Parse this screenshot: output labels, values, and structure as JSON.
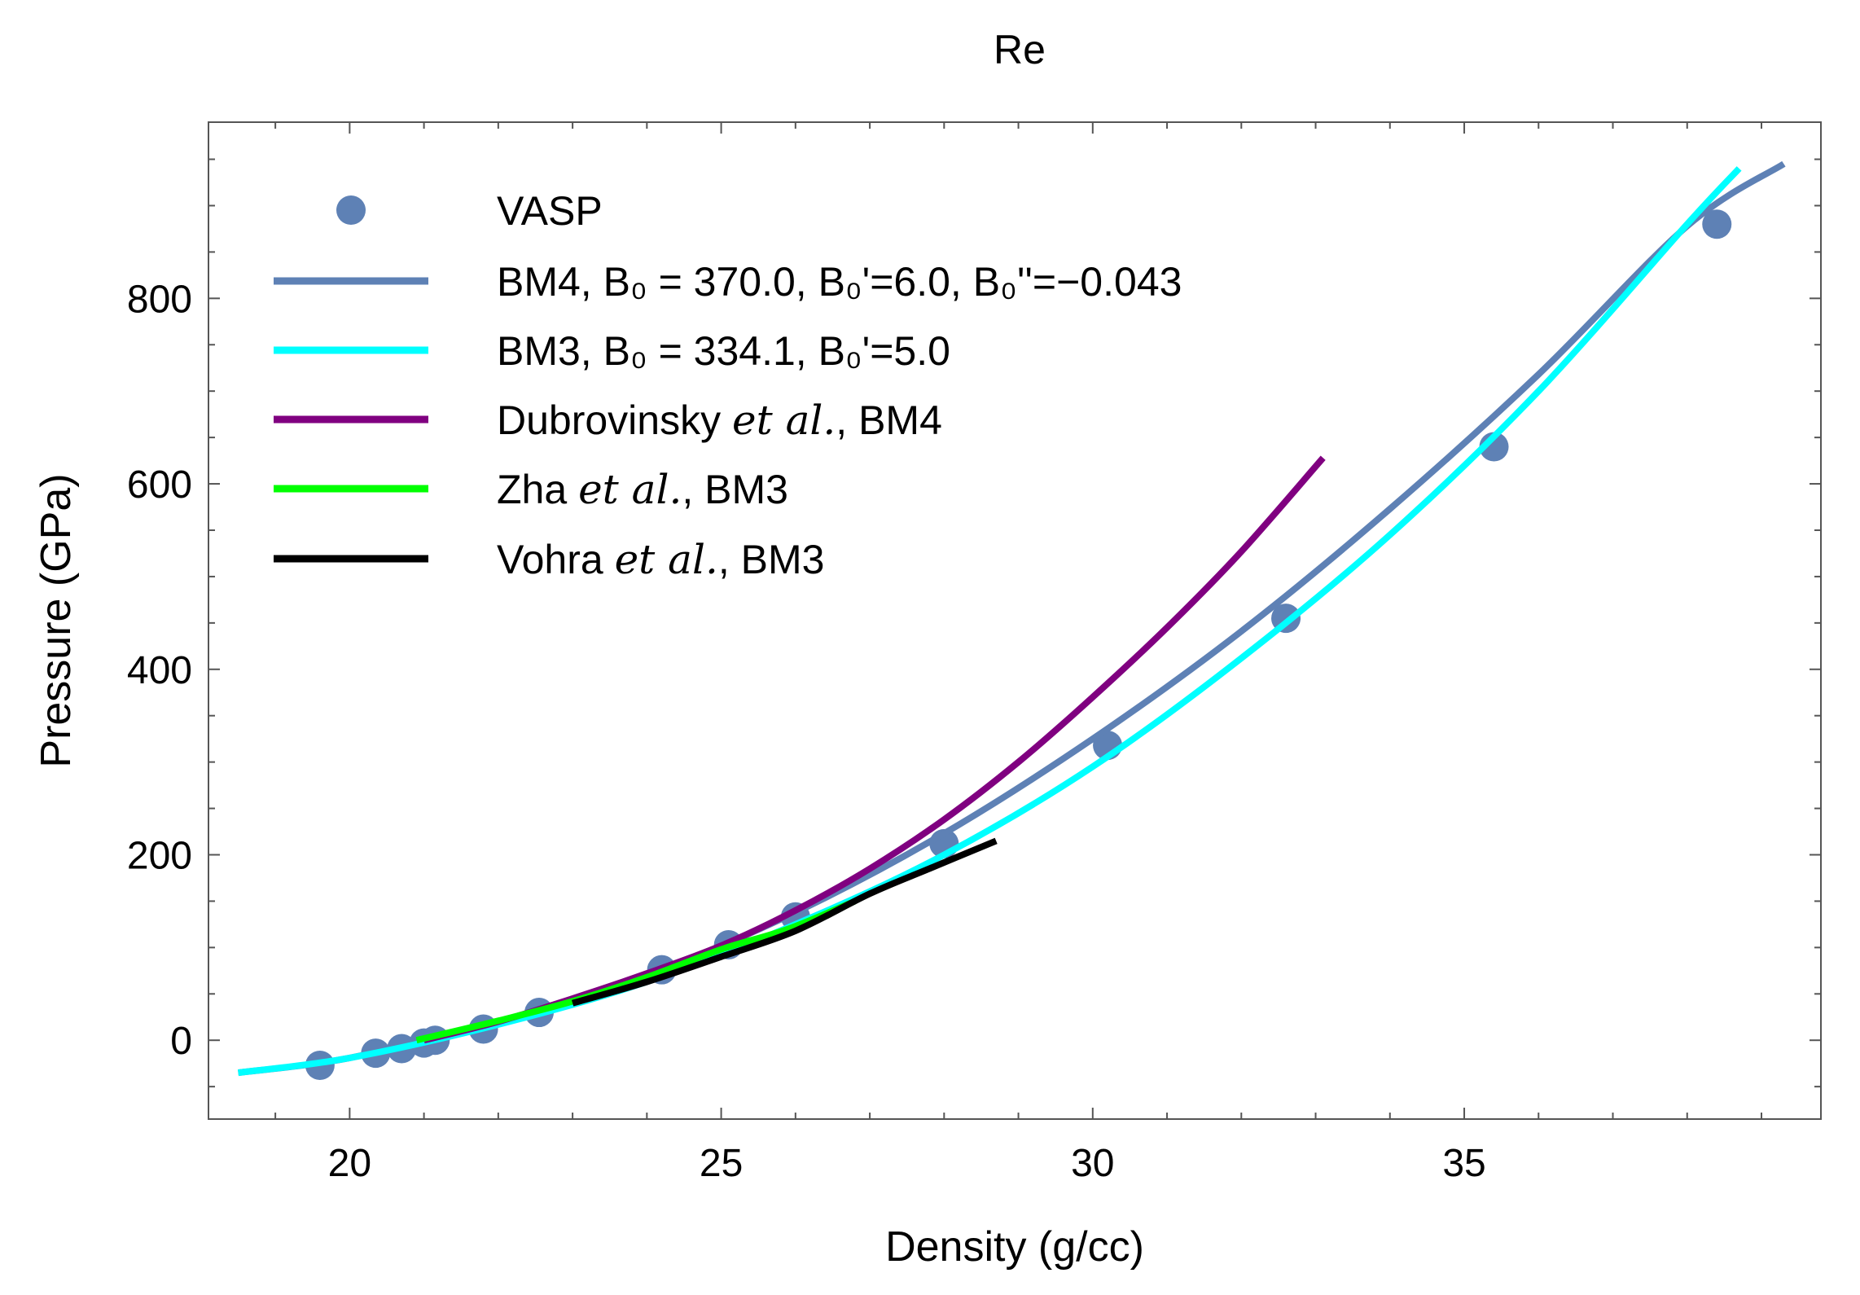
{
  "chart_data": {
    "type": "line",
    "title": "Re",
    "xlabel": "Density (g/cc)",
    "ylabel": "Pressure (GPa)",
    "xlim": [
      18.1,
      39.8
    ],
    "ylim": [
      -85,
      990
    ],
    "xticks": [
      20,
      25,
      30,
      35
    ],
    "xtick_labels": [
      "20",
      "25",
      "30",
      "35"
    ],
    "yticks": [
      0,
      200,
      400,
      600,
      800
    ],
    "ytick_labels": [
      "0",
      "200",
      "400",
      "600",
      "800"
    ],
    "legend_position": "top-left",
    "series": [
      {
        "name": "VASP",
        "label": "VASP",
        "kind": "points",
        "color": "#5e81b5",
        "x": [
          19.6,
          20.35,
          20.7,
          21.0,
          21.15,
          21.8,
          22.55,
          24.2,
          25.1,
          26.0,
          28.0,
          30.2,
          32.6,
          35.4,
          38.4
        ],
        "y": [
          -27,
          -14,
          -9,
          -3,
          0,
          12,
          30,
          76,
          103,
          133,
          212,
          318,
          455,
          640,
          880
        ]
      },
      {
        "name": "BM4",
        "label": "BM4, B₀ = 370.0, B₀'=6.0, B₀''=−0.043",
        "kind": "line",
        "color": "#5e81b5",
        "x": [
          18.5,
          20,
          22,
          24,
          26,
          28,
          30,
          32,
          34,
          36,
          38,
          39.3
        ],
        "y": [
          -35,
          -19,
          20,
          70,
          138,
          223,
          325,
          441,
          573,
          718,
          878,
          945
        ]
      },
      {
        "name": "BM3",
        "label": "BM3, B₀ = 334.1, B₀'=5.0",
        "kind": "line",
        "color": "#00ffff",
        "x": [
          18.5,
          20,
          22,
          24,
          26,
          28,
          30,
          32,
          34,
          36,
          38,
          38.7
        ],
        "y": [
          -35,
          -19,
          17,
          63,
          125,
          200,
          295,
          412,
          545,
          700,
          880,
          940
        ]
      },
      {
        "name": "Dubrovinsky et al., BM4",
        "label": "Dubrovinsky et al., BM4",
        "kind": "line",
        "color": "#800080",
        "x": [
          21,
          22,
          23,
          24,
          25,
          26,
          27,
          28,
          29,
          30,
          31,
          32,
          33.1
        ],
        "y": [
          0,
          20,
          45,
          72,
          102,
          140,
          185,
          238,
          300,
          370,
          445,
          527,
          628
        ]
      },
      {
        "name": "Zha et al., BM3",
        "label": "Zha et al., BM3",
        "kind": "line",
        "color": "#00ff00",
        "x": [
          20.9,
          22,
          23,
          24,
          25,
          25.9,
          26.8
        ],
        "y": [
          0,
          21,
          42,
          68,
          98,
          120,
          150
        ]
      },
      {
        "name": "Vohra et al., BM3",
        "label": "Vohra et al., BM3",
        "kind": "line",
        "color": "#000000",
        "x": [
          23.0,
          24,
          25,
          26,
          27,
          27.8,
          28.7
        ],
        "y": [
          40,
          63,
          90,
          118,
          158,
          185,
          215
        ]
      }
    ]
  }
}
